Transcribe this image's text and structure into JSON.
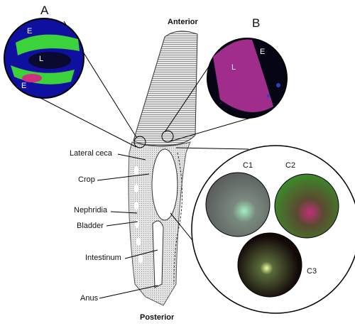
{
  "header": {
    "anterior": "Anterior",
    "posterior": "Posterior"
  },
  "panels": {
    "a": {
      "label": "A",
      "regions": [
        "E",
        "L",
        "E"
      ]
    },
    "b": {
      "label": "B",
      "regions": [
        "L",
        "E"
      ]
    },
    "c": {
      "subpanels": [
        "C1",
        "C2",
        "C3"
      ]
    }
  },
  "anatomy": [
    "Lateral ceca",
    "Crop",
    "Nephridia",
    "Bladder",
    "Intestinum",
    "Anus"
  ]
}
